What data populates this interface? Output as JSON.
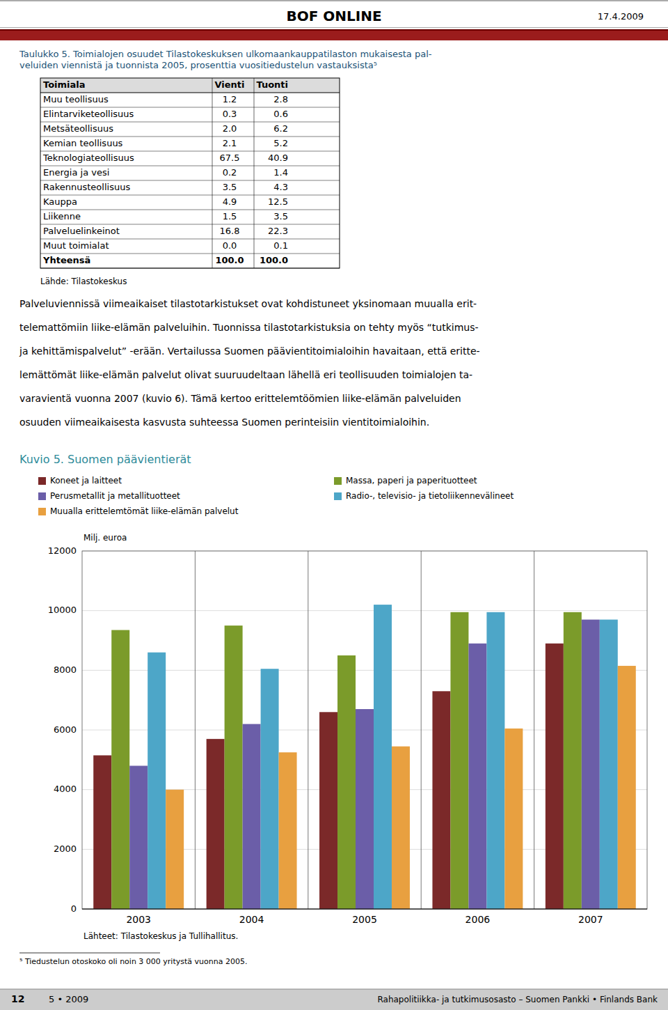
{
  "page": {
    "header_title": "BOF ONLINE",
    "header_date": "17.4.2009",
    "table_title": [
      "Taulukko 5. Toimialojen osuudet Tilastokeskuksen ulkomaankauppatilaston mukaisesta pal-",
      "veluiden viennistä ja tuonnista 2005, prosenttia vuositiedustelun vastauksista⁵"
    ],
    "table_headers": [
      "Toimiala",
      "Vienti",
      "Tuonti"
    ],
    "table_rows": [
      [
        "Muu teollisuus",
        "1.2",
        "2.8"
      ],
      [
        "Elintarviketeollisuus",
        "0.3",
        "0.6"
      ],
      [
        "Metsäteollisuus",
        "2.0",
        "6.2"
      ],
      [
        "Kemian teollisuus",
        "2.1",
        "5.2"
      ],
      [
        "Teknologiateollisuus",
        "67.5",
        "40.9"
      ],
      [
        "Energia ja vesi",
        "0.2",
        "1.4"
      ],
      [
        "Rakennusteollisuus",
        "3.5",
        "4.3"
      ],
      [
        "Kauppa",
        "4.9",
        "12.5"
      ],
      [
        "Liikenne",
        "1.5",
        "3.5"
      ],
      [
        "Palveluelinkeinot",
        "16.8",
        "22.3"
      ],
      [
        "Muut toimialat",
        "0.0",
        "0.1"
      ],
      [
        "Yhteensä",
        "100.0",
        "100.0"
      ]
    ],
    "table_source": "Lähde: Tilastokeskus",
    "body_lines": [
      "Palveluviennissä viimeaikaiset tilastotarkistukset ovat kohdistuneet yksinomaan muualla erit-",
      "telemattömiin liike-elämän palveluihin. Tuonnissa tilastotarkistuksia on tehty myös “tutkimus-",
      "ja kehittämispalvelut” -erään. Vertailussa Suomen päävientitoimialoihin havaitaan, että eritte-",
      "lemättömät liike-elämän palvelut olivat suuruudeltaan lähellä eri teollisuuden toimialojen ta-",
      "varavientä vuonna 2007 (kuvio 6). Tämä kertoo erittelemtöömien liike-elämän palveluiden",
      "osuuden viimeaikaisesta kasvusta suhteessa Suomen perinteisiin vientitoimialoihin."
    ],
    "footnote": "⁵ Tiedustelun otoskoko oli noin 3 000 yritystä vuonna 2005.",
    "footer_left": "12",
    "footer_mid": "5 • 2009",
    "footer_right": "Rahapolitiikka- ja tutkimusosasto – Suomen Pankki • Finlands Bank"
  },
  "chart_data": {
    "type": "bar",
    "title": "Kuvio 5. Suomen päävientierät",
    "y_label": "Milj. euroa",
    "source": "Lähteet: Tilastokeskus ja Tullihallitus.",
    "categories": [
      "2003",
      "2004",
      "2005",
      "2006",
      "2007"
    ],
    "series": [
      {
        "name": "Koneet ja laitteet",
        "color": "#7B2929",
        "values": [
          5150,
          5700,
          6600,
          7300,
          8900
        ]
      },
      {
        "name": "Massa, paperi ja paperituotteet",
        "color": "#7B9B2A",
        "values": [
          9350,
          9500,
          8500,
          9950,
          9950
        ]
      },
      {
        "name": "Perusmetallit ja metallituotteet",
        "color": "#6B5EA8",
        "values": [
          4800,
          6200,
          6700,
          8900,
          9700
        ]
      },
      {
        "name": "Radio-, televisio- ja tietoliikennevälineet",
        "color": "#4DA6C8",
        "values": [
          8600,
          8050,
          10200,
          9950,
          9700
        ]
      },
      {
        "name": "Muualla erittelemtömät liike-elämän palvelut",
        "color": "#E8A040",
        "values": [
          4000,
          5250,
          5450,
          6050,
          8150
        ]
      }
    ],
    "ylim": [
      0,
      12000
    ],
    "yticks": [
      0,
      2000,
      4000,
      6000,
      8000,
      10000,
      12000
    ],
    "grid": true,
    "legend": "top"
  }
}
